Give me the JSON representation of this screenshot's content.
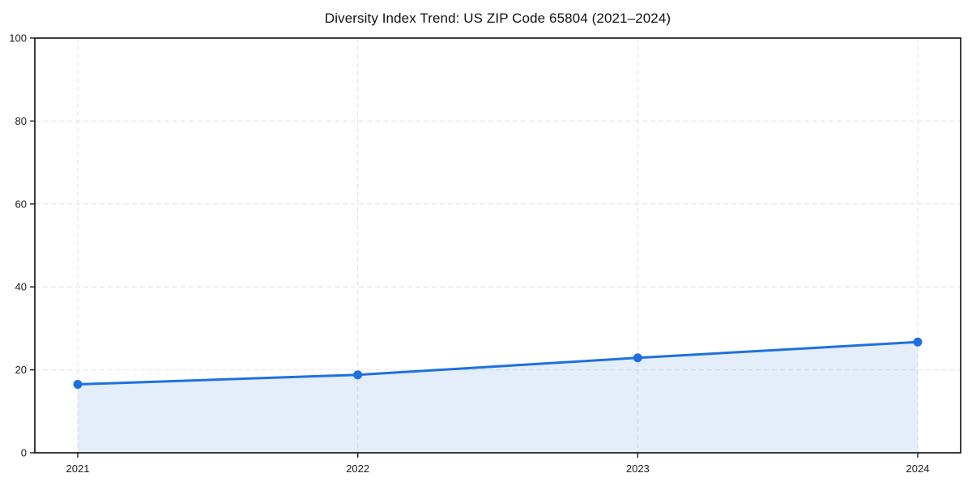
{
  "title": "Diversity Index Trend: US ZIP Code 65804 (2021–2024)",
  "chart_data": {
    "type": "area",
    "title": "Diversity Index Trend: US ZIP Code 65804 (2021–2024)",
    "x": [
      2021,
      2022,
      2023,
      2024
    ],
    "xticks": [
      "2021",
      "2022",
      "2023",
      "2024"
    ],
    "yticks": [
      0,
      20,
      40,
      60,
      80,
      100
    ],
    "ylim": [
      0,
      100
    ],
    "xlabel": "",
    "ylabel": "",
    "grid": true,
    "grid_style": "dashed",
    "legend": false,
    "series": [
      {
        "name": "Diversity Index",
        "values": [
          16.5,
          18.8,
          22.9,
          26.7
        ],
        "line_color": "#1e70e0",
        "marker": "circle",
        "area_fill": true,
        "fill_opacity": 0.12
      }
    ],
    "colors": {
      "line": "#1e70e0",
      "area_fill": "#e8effb",
      "gridline": "#e2e2e2",
      "spine": "#1a1a1a",
      "tick_text": "#1a1a1a",
      "background": "#ffffff"
    }
  }
}
